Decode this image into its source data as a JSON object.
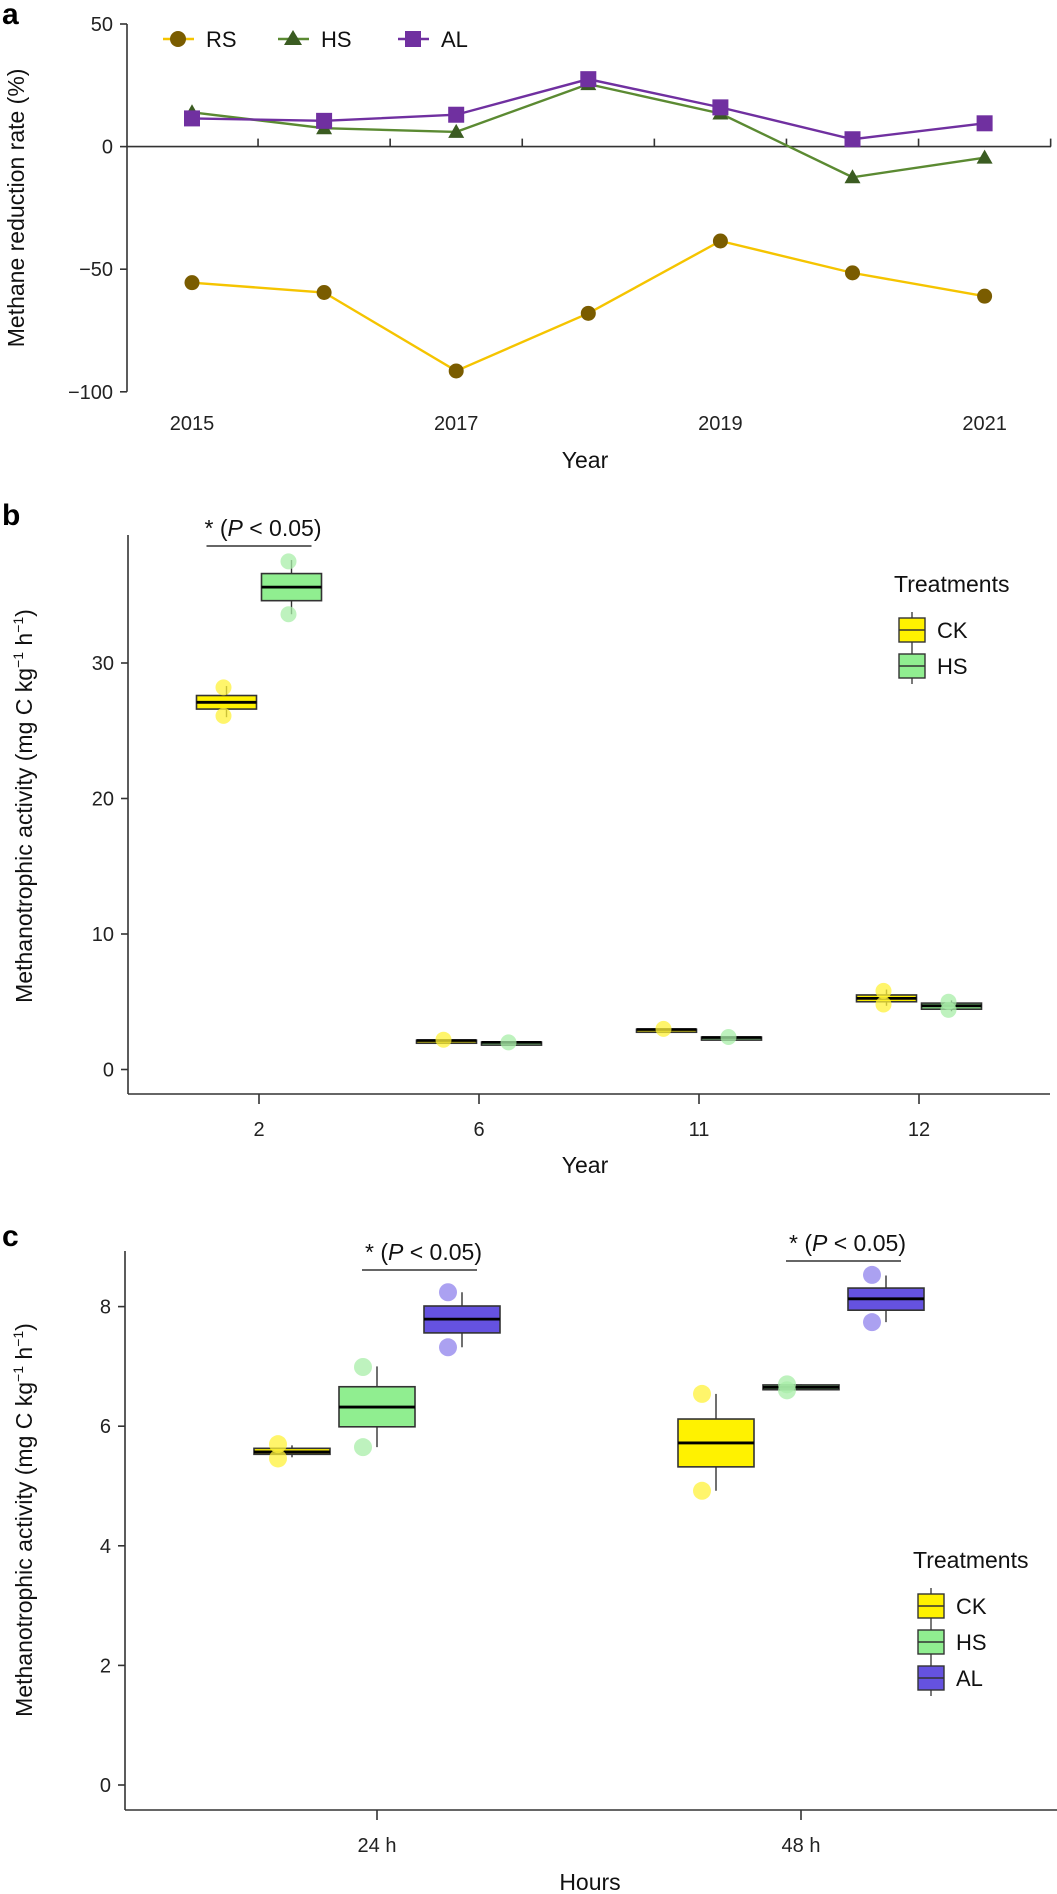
{
  "chart_data": [
    {
      "panel": "a",
      "type": "line",
      "title": "",
      "xlabel": "Year",
      "ylabel": "Methane reduction rate (%)",
      "x": [
        2015,
        2016,
        2017,
        2018,
        2019,
        2020,
        2021
      ],
      "xtick_labels": [
        "2015",
        "2017",
        "2019",
        "2021"
      ],
      "xtick_values": [
        2015,
        2017,
        2019,
        2021
      ],
      "yticks": [
        50,
        0,
        -50,
        -100
      ],
      "ytick_labels": [
        "50",
        "0",
        "−50",
        "−100"
      ],
      "ylim": [
        -100,
        50
      ],
      "legend": "top-left",
      "grid": false,
      "series": [
        {
          "name": "RS",
          "marker": "circle",
          "line_color": "#F5C400",
          "marker_color": "#7A5C00",
          "values": [
            -55.5,
            -59.5,
            -91.5,
            -68,
            -38.5,
            -51.5,
            -61
          ]
        },
        {
          "name": "HS",
          "marker": "triangle",
          "line_color": "#5B8A32",
          "marker_color": "#3B5C22",
          "values": [
            14,
            7.5,
            6,
            25.5,
            13.5,
            -12.5,
            -4.5
          ]
        },
        {
          "name": "AL",
          "marker": "square",
          "line_color": "#7030A0",
          "marker_color": "#7030A0",
          "values": [
            11.5,
            10.5,
            13,
            27.5,
            16,
            3,
            9.5
          ]
        }
      ]
    },
    {
      "panel": "b",
      "type": "box",
      "title": "",
      "xlabel": "Year",
      "ylabel": "Methanotrophic activity (mg C kg⁻¹ h⁻¹)",
      "categories": [
        "2",
        "6",
        "11",
        "12"
      ],
      "yticks": [
        0,
        10,
        20,
        30
      ],
      "ylim": [
        -2,
        39
      ],
      "legend": "right",
      "legend_title": "Treatments",
      "grid": false,
      "significance": [
        {
          "category": "2",
          "from": "CK",
          "to": "HS",
          "label_star": "*",
          "label_open": "(",
          "label_p": "P",
          "label_rest": " < 0.05)"
        }
      ],
      "series": [
        {
          "name": "CK",
          "color": "#FFF200",
          "point_color": "#FFF23A",
          "boxes": [
            {
              "q1": 26.6,
              "median": 27.1,
              "q3": 27.6,
              "min": 26.0,
              "max": 28.3,
              "points": [
                28.2,
                26.1
              ]
            },
            {
              "q1": 2.14,
              "median": 2.14,
              "q3": 2.16,
              "min": 2.1,
              "max": 2.2,
              "points": [
                2.2
              ]
            },
            {
              "q1": 2.93,
              "median": 2.95,
              "q3": 2.97,
              "min": 2.9,
              "max": 3.0,
              "points": [
                3.0
              ]
            },
            {
              "q1": 5.0,
              "median": 5.25,
              "q3": 5.5,
              "min": 4.7,
              "max": 5.9,
              "points": [
                5.8,
                4.8
              ]
            }
          ]
        },
        {
          "name": "HS",
          "color": "#90EE90",
          "point_color": "#A8EDA8",
          "boxes": [
            {
              "q1": 34.6,
              "median": 35.6,
              "q3": 36.6,
              "min": 33.6,
              "max": 37.6,
              "points": [
                37.5,
                33.6
              ]
            },
            {
              "q1": 1.98,
              "median": 2.0,
              "q3": 2.02,
              "min": 1.9,
              "max": 2.1,
              "points": [
                2.0
              ]
            },
            {
              "q1": 2.33,
              "median": 2.36,
              "q3": 2.39,
              "min": 2.3,
              "max": 2.45,
              "points": [
                2.4
              ]
            },
            {
              "q1": 4.45,
              "median": 4.7,
              "q3": 4.9,
              "min": 4.3,
              "max": 5.1,
              "points": [
                5.0,
                4.4
              ]
            }
          ]
        }
      ]
    },
    {
      "panel": "c",
      "type": "box",
      "title": "",
      "xlabel": "Hours",
      "ylabel": "Methanotrophic activity (mg C kg⁻¹ h⁻¹)",
      "categories": [
        "24 h",
        "48 h"
      ],
      "yticks": [
        0,
        2,
        4,
        6,
        8
      ],
      "ylim": [
        -0.45,
        8.9
      ],
      "legend": "right",
      "legend_title": "Treatments",
      "grid": false,
      "significance": [
        {
          "category": "24 h",
          "from": "HS",
          "to": "AL",
          "label_star": "*",
          "label_open": "(",
          "label_p": "P",
          "label_rest": " < 0.05)"
        },
        {
          "category": "48 h",
          "from": "HS",
          "to": "AL",
          "label_star": "*",
          "label_open": "(",
          "label_p": "P",
          "label_rest": " < 0.05)"
        }
      ],
      "series": [
        {
          "name": "CK",
          "color": "#FFF200",
          "point_color": "#FFF23A",
          "boxes": [
            {
              "q1": 5.53,
              "median": 5.57,
              "q3": 5.63,
              "min": 5.48,
              "max": 5.68,
              "points": [
                5.7,
                5.46
              ]
            },
            {
              "q1": 5.32,
              "median": 5.72,
              "q3": 6.12,
              "min": 4.92,
              "max": 6.54,
              "points": [
                6.54,
                4.92
              ]
            }
          ]
        },
        {
          "name": "HS",
          "color": "#90EE90",
          "point_color": "#A8EDA8",
          "boxes": [
            {
              "q1": 5.99,
              "median": 6.32,
              "q3": 6.66,
              "min": 5.65,
              "max": 7.0,
              "points": [
                6.99,
                5.65
              ]
            },
            {
              "q1": 6.61,
              "median": 6.65,
              "q3": 6.69,
              "min": 6.6,
              "max": 6.7,
              "points": [
                6.7,
                6.6
              ]
            }
          ]
        },
        {
          "name": "AL",
          "color": "#6552E0",
          "point_color": "#8F82EC",
          "boxes": [
            {
              "q1": 7.56,
              "median": 7.79,
              "q3": 8.01,
              "min": 7.32,
              "max": 8.24,
              "points": [
                8.24,
                7.32
              ]
            },
            {
              "q1": 7.94,
              "median": 8.13,
              "q3": 8.31,
              "min": 7.74,
              "max": 8.52,
              "points": [
                8.53,
                7.74
              ]
            }
          ]
        }
      ]
    }
  ]
}
